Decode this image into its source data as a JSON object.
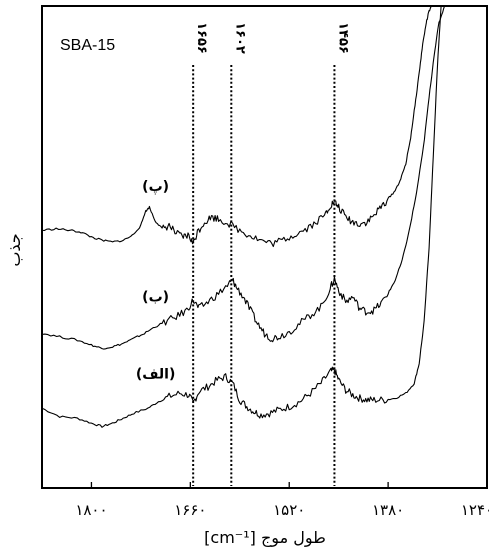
{
  "chart_data": {
    "type": "line",
    "sample_label": "SBA-15",
    "xlabel": "طول موج [cm⁻¹]",
    "ylabel": "جذب",
    "xlim": [
      1870,
      1240
    ],
    "ylim": [
      -0.15,
      2.75
    ],
    "x_ticks": [
      {
        "value": 1800,
        "label": "۱۸۰۰"
      },
      {
        "value": 1660,
        "label": "۱۶۶۰"
      },
      {
        "value": 1520,
        "label": "۱۵۲۰"
      },
      {
        "value": 1380,
        "label": "۱۳۸۰"
      },
      {
        "value": 1240,
        "label": "۱۲۴۰"
      }
    ],
    "reference_lines": [
      {
        "value": 1656,
        "label": "۱۶۵۶"
      },
      {
        "value": 1602,
        "label": "۱۶۰۲"
      },
      {
        "value": 1456,
        "label": "۱۴۵۶"
      }
    ],
    "series": [
      {
        "name": "(الف)",
        "x": [
          1870,
          1845,
          1820,
          1800,
          1785,
          1770,
          1755,
          1740,
          1720,
          1705,
          1690,
          1675,
          1662,
          1656,
          1648,
          1635,
          1622,
          1610,
          1600,
          1590,
          1580,
          1570,
          1560,
          1548,
          1535,
          1520,
          1505,
          1490,
          1475,
          1462,
          1456,
          1450,
          1440,
          1430,
          1420,
          1410,
          1400,
          1385,
          1370,
          1355,
          1343,
          1336,
          1329,
          1322,
          1316,
          1310,
          1305
        ],
        "y": [
          0.33,
          0.28,
          0.27,
          0.24,
          0.22,
          0.24,
          0.27,
          0.3,
          0.33,
          0.37,
          0.4,
          0.42,
          0.41,
          0.36,
          0.43,
          0.46,
          0.5,
          0.52,
          0.48,
          0.38,
          0.34,
          0.31,
          0.29,
          0.3,
          0.32,
          0.34,
          0.37,
          0.42,
          0.48,
          0.55,
          0.56,
          0.5,
          0.44,
          0.41,
          0.39,
          0.38,
          0.38,
          0.38,
          0.39,
          0.42,
          0.48,
          0.6,
          0.85,
          1.3,
          1.85,
          2.4,
          2.75
        ]
      },
      {
        "name": "(ب)",
        "x": [
          1870,
          1845,
          1820,
          1800,
          1785,
          1770,
          1755,
          1740,
          1725,
          1710,
          1695,
          1680,
          1665,
          1656,
          1648,
          1635,
          1620,
          1605,
          1600,
          1595,
          1585,
          1575,
          1565,
          1555,
          1545,
          1535,
          1520,
          1505,
          1490,
          1475,
          1462,
          1456,
          1450,
          1440,
          1430,
          1420,
          1410,
          1400,
          1390,
          1380,
          1370,
          1360,
          1350,
          1340,
          1330,
          1322,
          1315,
          1308,
          1300
        ],
        "y": [
          0.78,
          0.76,
          0.74,
          0.71,
          0.69,
          0.7,
          0.72,
          0.75,
          0.78,
          0.82,
          0.85,
          0.88,
          0.92,
          0.98,
          0.93,
          0.97,
          1.02,
          1.08,
          1.1,
          1.06,
          1.0,
          0.92,
          0.84,
          0.78,
          0.75,
          0.76,
          0.79,
          0.84,
          0.89,
          0.94,
          1.05,
          1.11,
          1.04,
          0.97,
          1.0,
          0.93,
          0.91,
          0.92,
          0.96,
          1.02,
          1.1,
          1.22,
          1.4,
          1.62,
          1.9,
          2.2,
          2.45,
          2.65,
          2.75
        ]
      },
      {
        "name": "(پ)",
        "x": [
          1870,
          1850,
          1830,
          1815,
          1800,
          1785,
          1770,
          1755,
          1742,
          1730,
          1724,
          1718,
          1710,
          1700,
          1690,
          1680,
          1670,
          1662,
          1656,
          1650,
          1640,
          1630,
          1620,
          1605,
          1590,
          1575,
          1560,
          1545,
          1530,
          1515,
          1500,
          1485,
          1470,
          1462,
          1456,
          1450,
          1440,
          1430,
          1420,
          1410,
          1400,
          1390,
          1380,
          1370,
          1362,
          1355,
          1348,
          1342,
          1336,
          1331,
          1326,
          1322,
          1318
        ],
        "y": [
          1.4,
          1.41,
          1.4,
          1.39,
          1.36,
          1.34,
          1.33,
          1.34,
          1.37,
          1.43,
          1.51,
          1.54,
          1.46,
          1.41,
          1.43,
          1.38,
          1.36,
          1.37,
          1.32,
          1.39,
          1.45,
          1.48,
          1.47,
          1.44,
          1.4,
          1.37,
          1.34,
          1.32,
          1.34,
          1.37,
          1.4,
          1.44,
          1.49,
          1.55,
          1.57,
          1.54,
          1.48,
          1.45,
          1.44,
          1.45,
          1.49,
          1.54,
          1.59,
          1.64,
          1.71,
          1.8,
          1.96,
          2.15,
          2.35,
          2.52,
          2.65,
          2.72,
          2.75
        ]
      }
    ],
    "grid": false,
    "legend": "none"
  }
}
